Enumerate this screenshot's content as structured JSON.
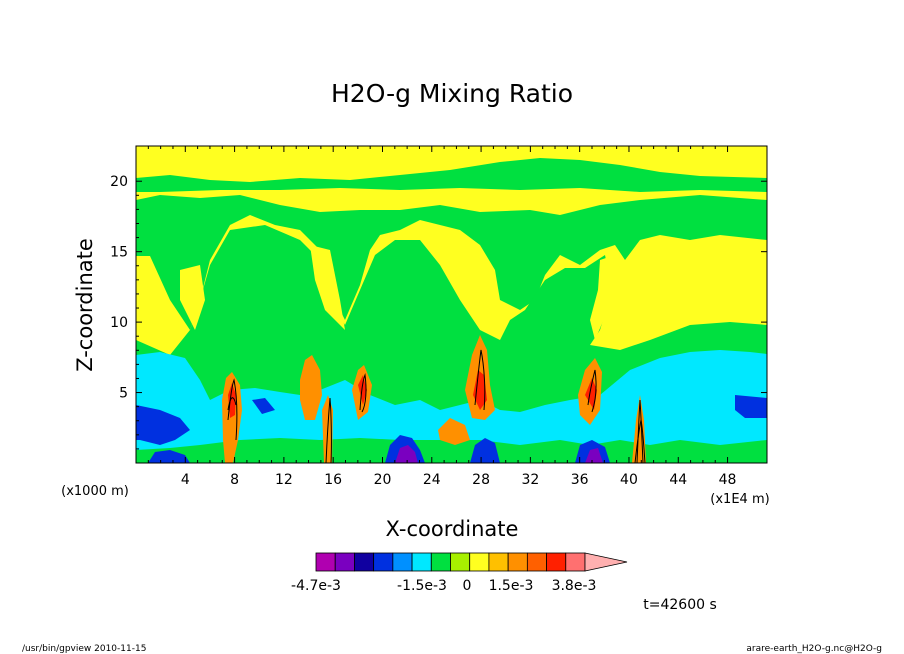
{
  "chart_data": {
    "type": "heatmap",
    "title": "H2O-g Mixing Ratio",
    "xlabel": "X-coordinate",
    "ylabel": "Z-coordinate",
    "x_unit_left": "(x1000 m)",
    "x_unit_right": "(x1E4 m)",
    "x_ticks": [
      "4",
      "8",
      "12",
      "16",
      "20",
      "24",
      "28",
      "32",
      "36",
      "40",
      "44",
      "48"
    ],
    "y_ticks": [
      "5",
      "10",
      "15",
      "20"
    ],
    "xlim": [
      0,
      51.2
    ],
    "ylim": [
      0,
      22.5
    ],
    "colorbar": {
      "colors": [
        "#b000b0",
        "#7a00c0",
        "#1000a0",
        "#0030e0",
        "#0090ff",
        "#00e8ff",
        "#00e040",
        "#a8f000",
        "#ffff20",
        "#ffc000",
        "#ff9000",
        "#ff6000",
        "#ff2000",
        "#ff7070",
        "#ffb0b0"
      ],
      "labels": [
        "-4.7e-3",
        "-1.5e-3",
        "0",
        "1.5e-3",
        "3.8e-3"
      ]
    },
    "colors": {
      "yellow": "#ffff20",
      "green": "#00e040",
      "cyan": "#00e8ff",
      "blue": "#0030e0",
      "orange": "#ff9000",
      "red": "#ff2000",
      "purple": "#7a00c0"
    }
  },
  "annotations": {
    "time": "t=42600 s",
    "footer_left": "/usr/bin/gpview   2010-11-15",
    "footer_right": "arare-earth_H2O-g.nc@H2O-g"
  }
}
